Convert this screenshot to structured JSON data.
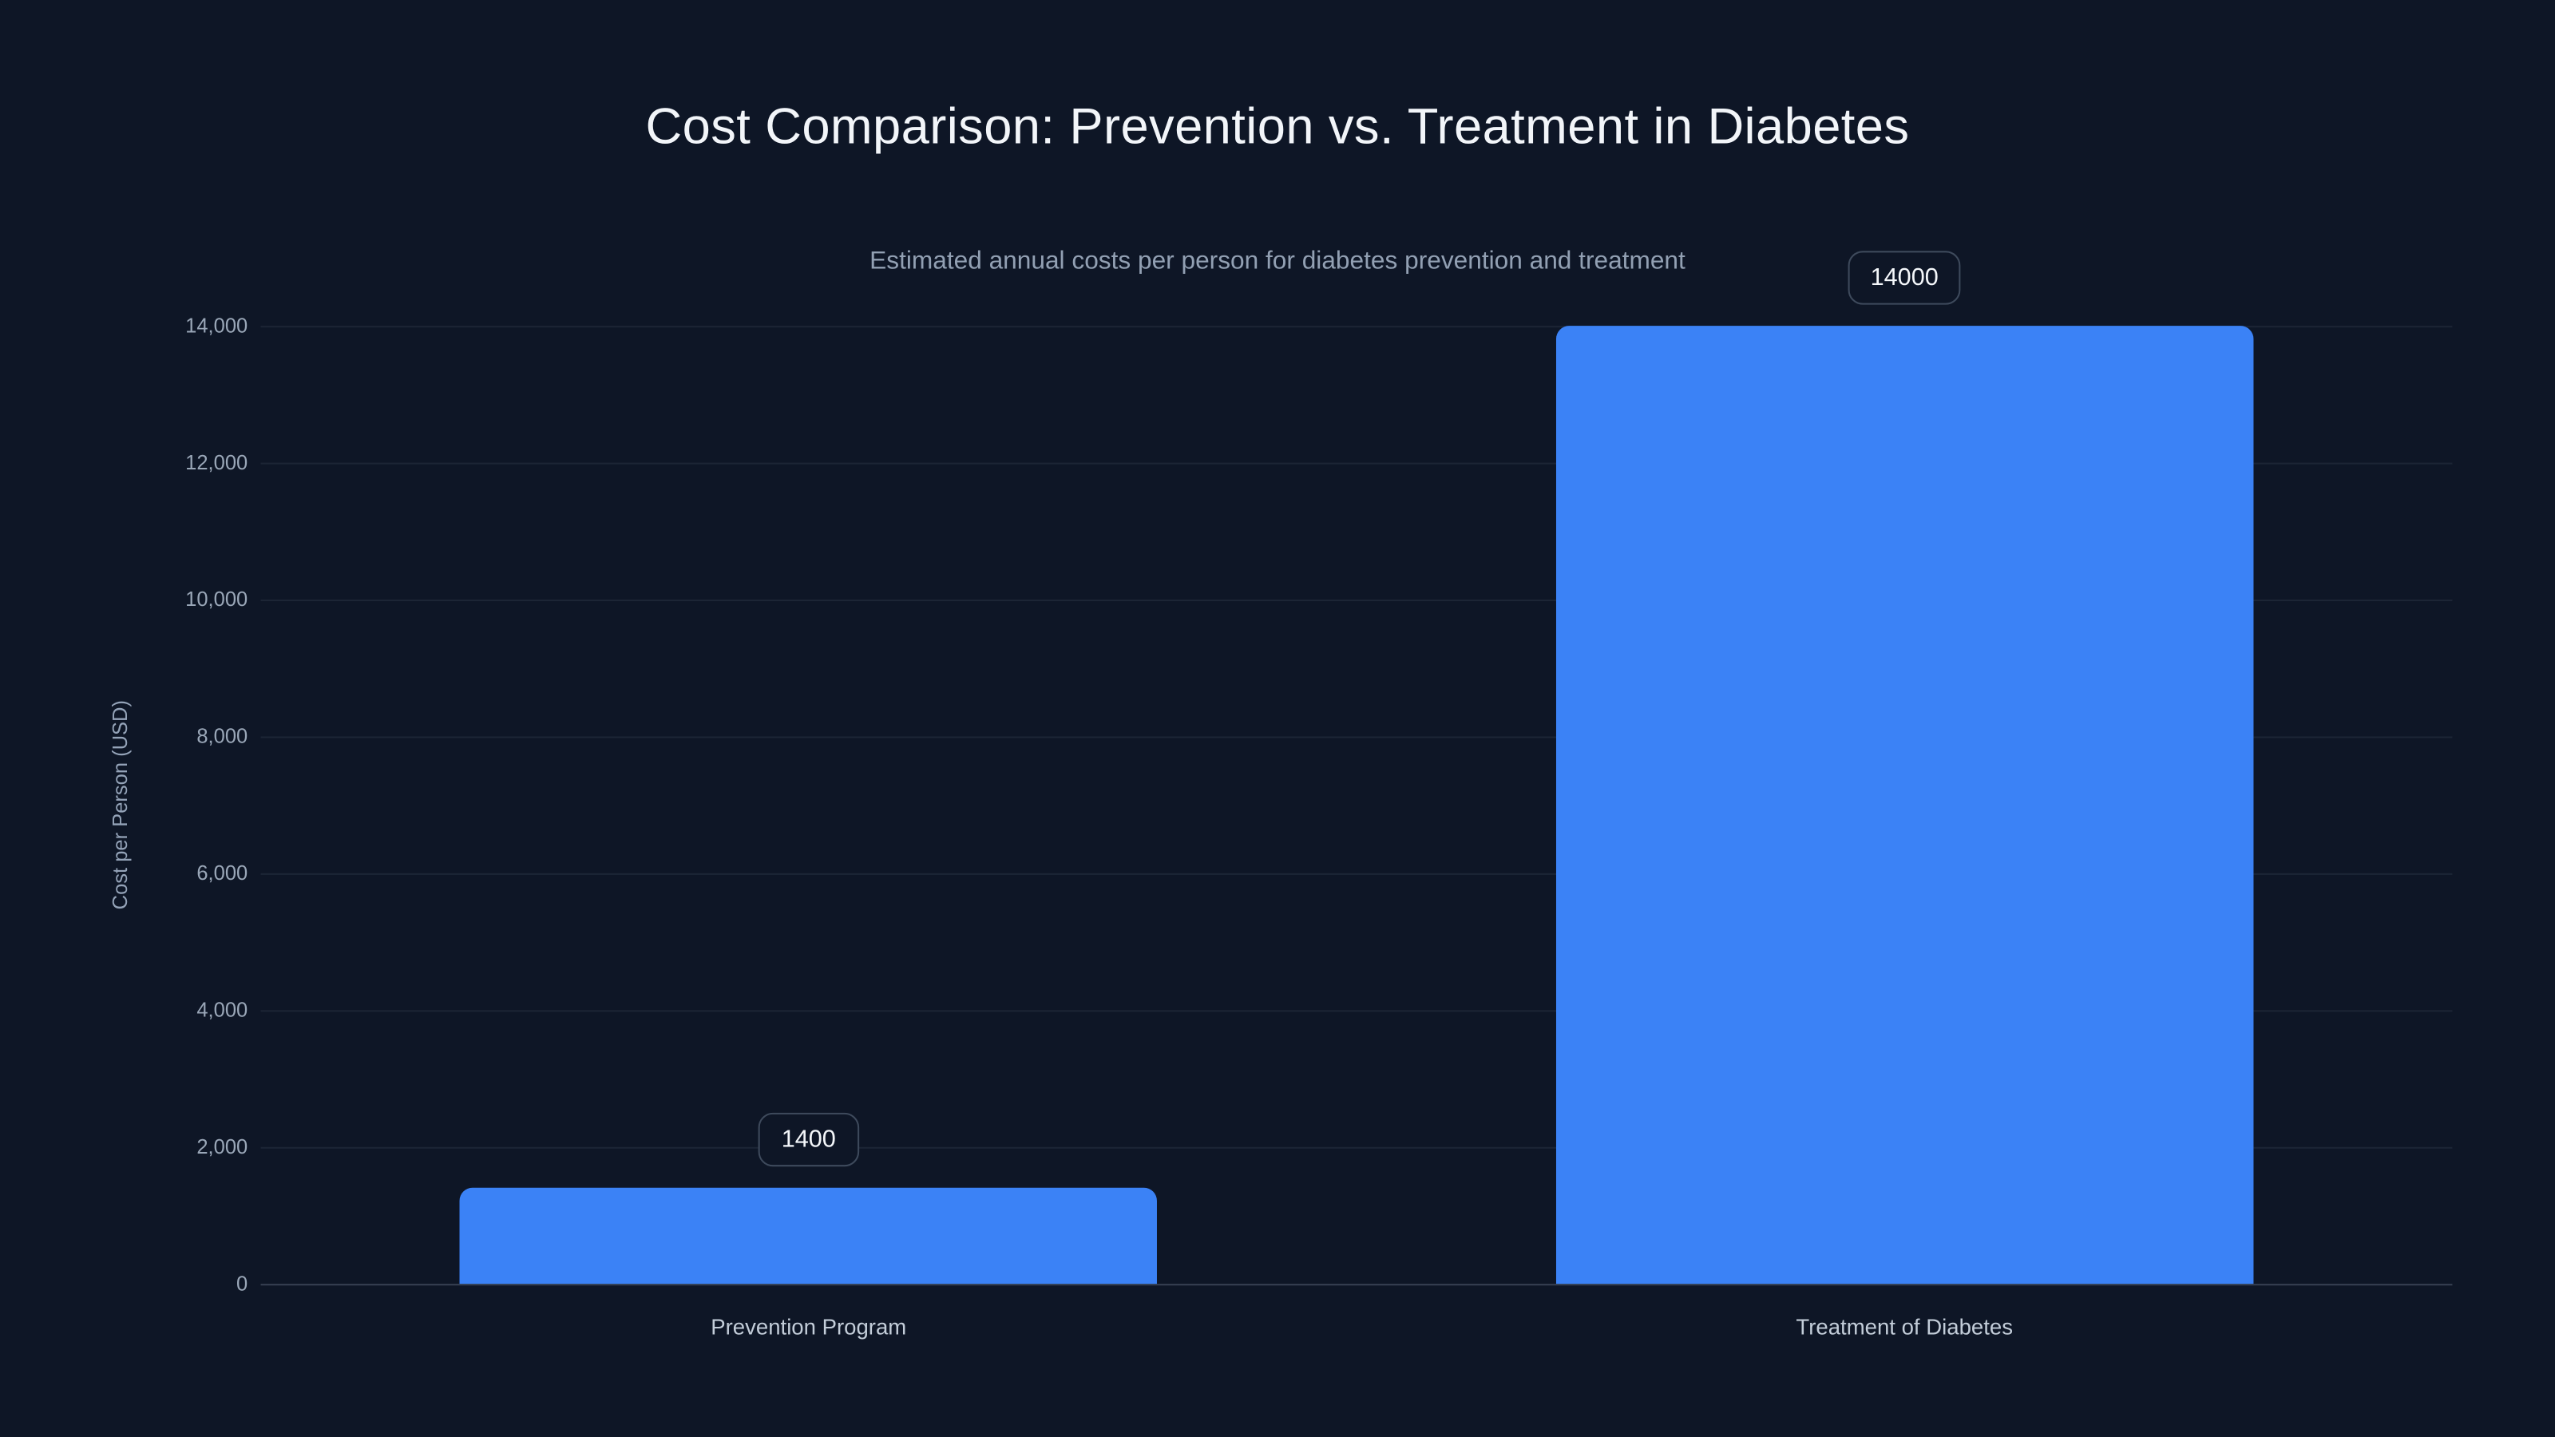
{
  "page": {
    "background_color": "#0e1626"
  },
  "chart_data": {
    "type": "bar",
    "title": "Cost Comparison: Prevention vs. Treatment in Diabetes",
    "subtitle": "Estimated annual costs per person for diabetes prevention and treatment",
    "categories": [
      "Prevention Program",
      "Treatment of Diabetes"
    ],
    "values": [
      1400,
      14000
    ],
    "value_labels": [
      "1400",
      "14000"
    ],
    "xlabel": "",
    "ylabel": "Cost per Person (USD)",
    "ylim": [
      0,
      14000
    ],
    "ytick_step": 2000,
    "ytick_labels": [
      "0",
      "2,000",
      "4,000",
      "6,000",
      "8,000",
      "10,000",
      "12,000",
      "14,000"
    ],
    "bar_color": "#3b82f6",
    "grid": true,
    "legend_position": "none"
  }
}
